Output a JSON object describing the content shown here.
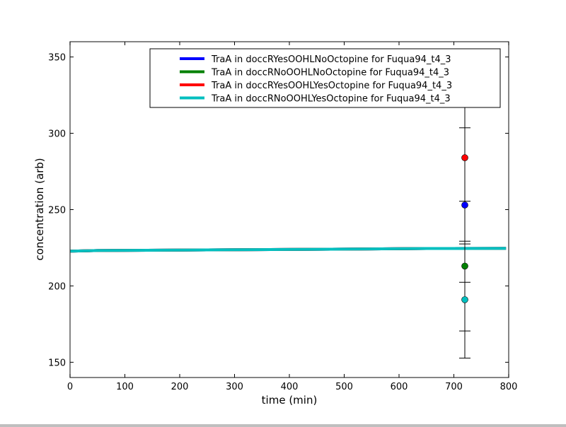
{
  "chart_data": {
    "type": "line",
    "title": "",
    "xlabel": "time (min)",
    "ylabel": "concentration (arb)",
    "xlim": [
      0,
      800
    ],
    "ylim": [
      140,
      360
    ],
    "xticks": [
      0,
      100,
      200,
      300,
      400,
      500,
      600,
      700,
      800
    ],
    "yticks": [
      150,
      200,
      250,
      300,
      350
    ],
    "grid": false,
    "legend_position": "upper right",
    "series": [
      {
        "name": "TraA in doccRYesOOHLNoOctopine for Fuqua94_t4_3",
        "color": "#0000ff",
        "x": [
          0,
          50,
          250,
          450,
          650,
          795
        ],
        "y": [
          222.8,
          223.2,
          223.6,
          224.0,
          224.5,
          224.6
        ],
        "points": [
          {
            "x": 720,
            "y": 253,
            "err": 50.6
          }
        ]
      },
      {
        "name": "TraA in doccRNoOOHLNoOctopine for Fuqua94_t4_3",
        "color": "#008000",
        "x": [
          0,
          50,
          250,
          450,
          650,
          795
        ],
        "y": [
          222.8,
          223.2,
          223.6,
          224.0,
          224.5,
          224.6
        ],
        "points": [
          {
            "x": 720,
            "y": 213,
            "err": 42.5
          }
        ]
      },
      {
        "name": "TraA in doccRYesOOHLYesOctopine for Fuqua94_t4_3",
        "color": "#ff0000",
        "x": [
          0,
          50,
          250,
          450,
          650,
          795
        ],
        "y": [
          222.8,
          223.2,
          223.6,
          224.0,
          224.5,
          224.6
        ],
        "points": [
          {
            "x": 720,
            "y": 284,
            "err": 56.5
          }
        ]
      },
      {
        "name": "TraA in doccRNoOOHLYesOctopine for Fuqua94_t4_3",
        "color": "#00bfbf",
        "x": [
          0,
          50,
          250,
          450,
          650,
          795
        ],
        "y": [
          222.8,
          223.2,
          223.6,
          224.0,
          224.5,
          224.6
        ],
        "points": [
          {
            "x": 720,
            "y": 191,
            "err": 38.3
          }
        ]
      }
    ]
  },
  "axes": {
    "xlabel": "time (min)",
    "ylabel": "concentration (arb)"
  },
  "legend": {
    "items": [
      {
        "label": "TraA in doccRYesOOHLNoOctopine for Fuqua94_t4_3",
        "color": "#0000ff"
      },
      {
        "label": "TraA in doccRNoOOHLNoOctopine for Fuqua94_t4_3",
        "color": "#008000"
      },
      {
        "label": "TraA in doccRYesOOHLYesOctopine for Fuqua94_t4_3",
        "color": "#ff0000"
      },
      {
        "label": "TraA in doccRNoOOHLYesOctopine for Fuqua94_t4_3",
        "color": "#00bfbf"
      }
    ]
  }
}
